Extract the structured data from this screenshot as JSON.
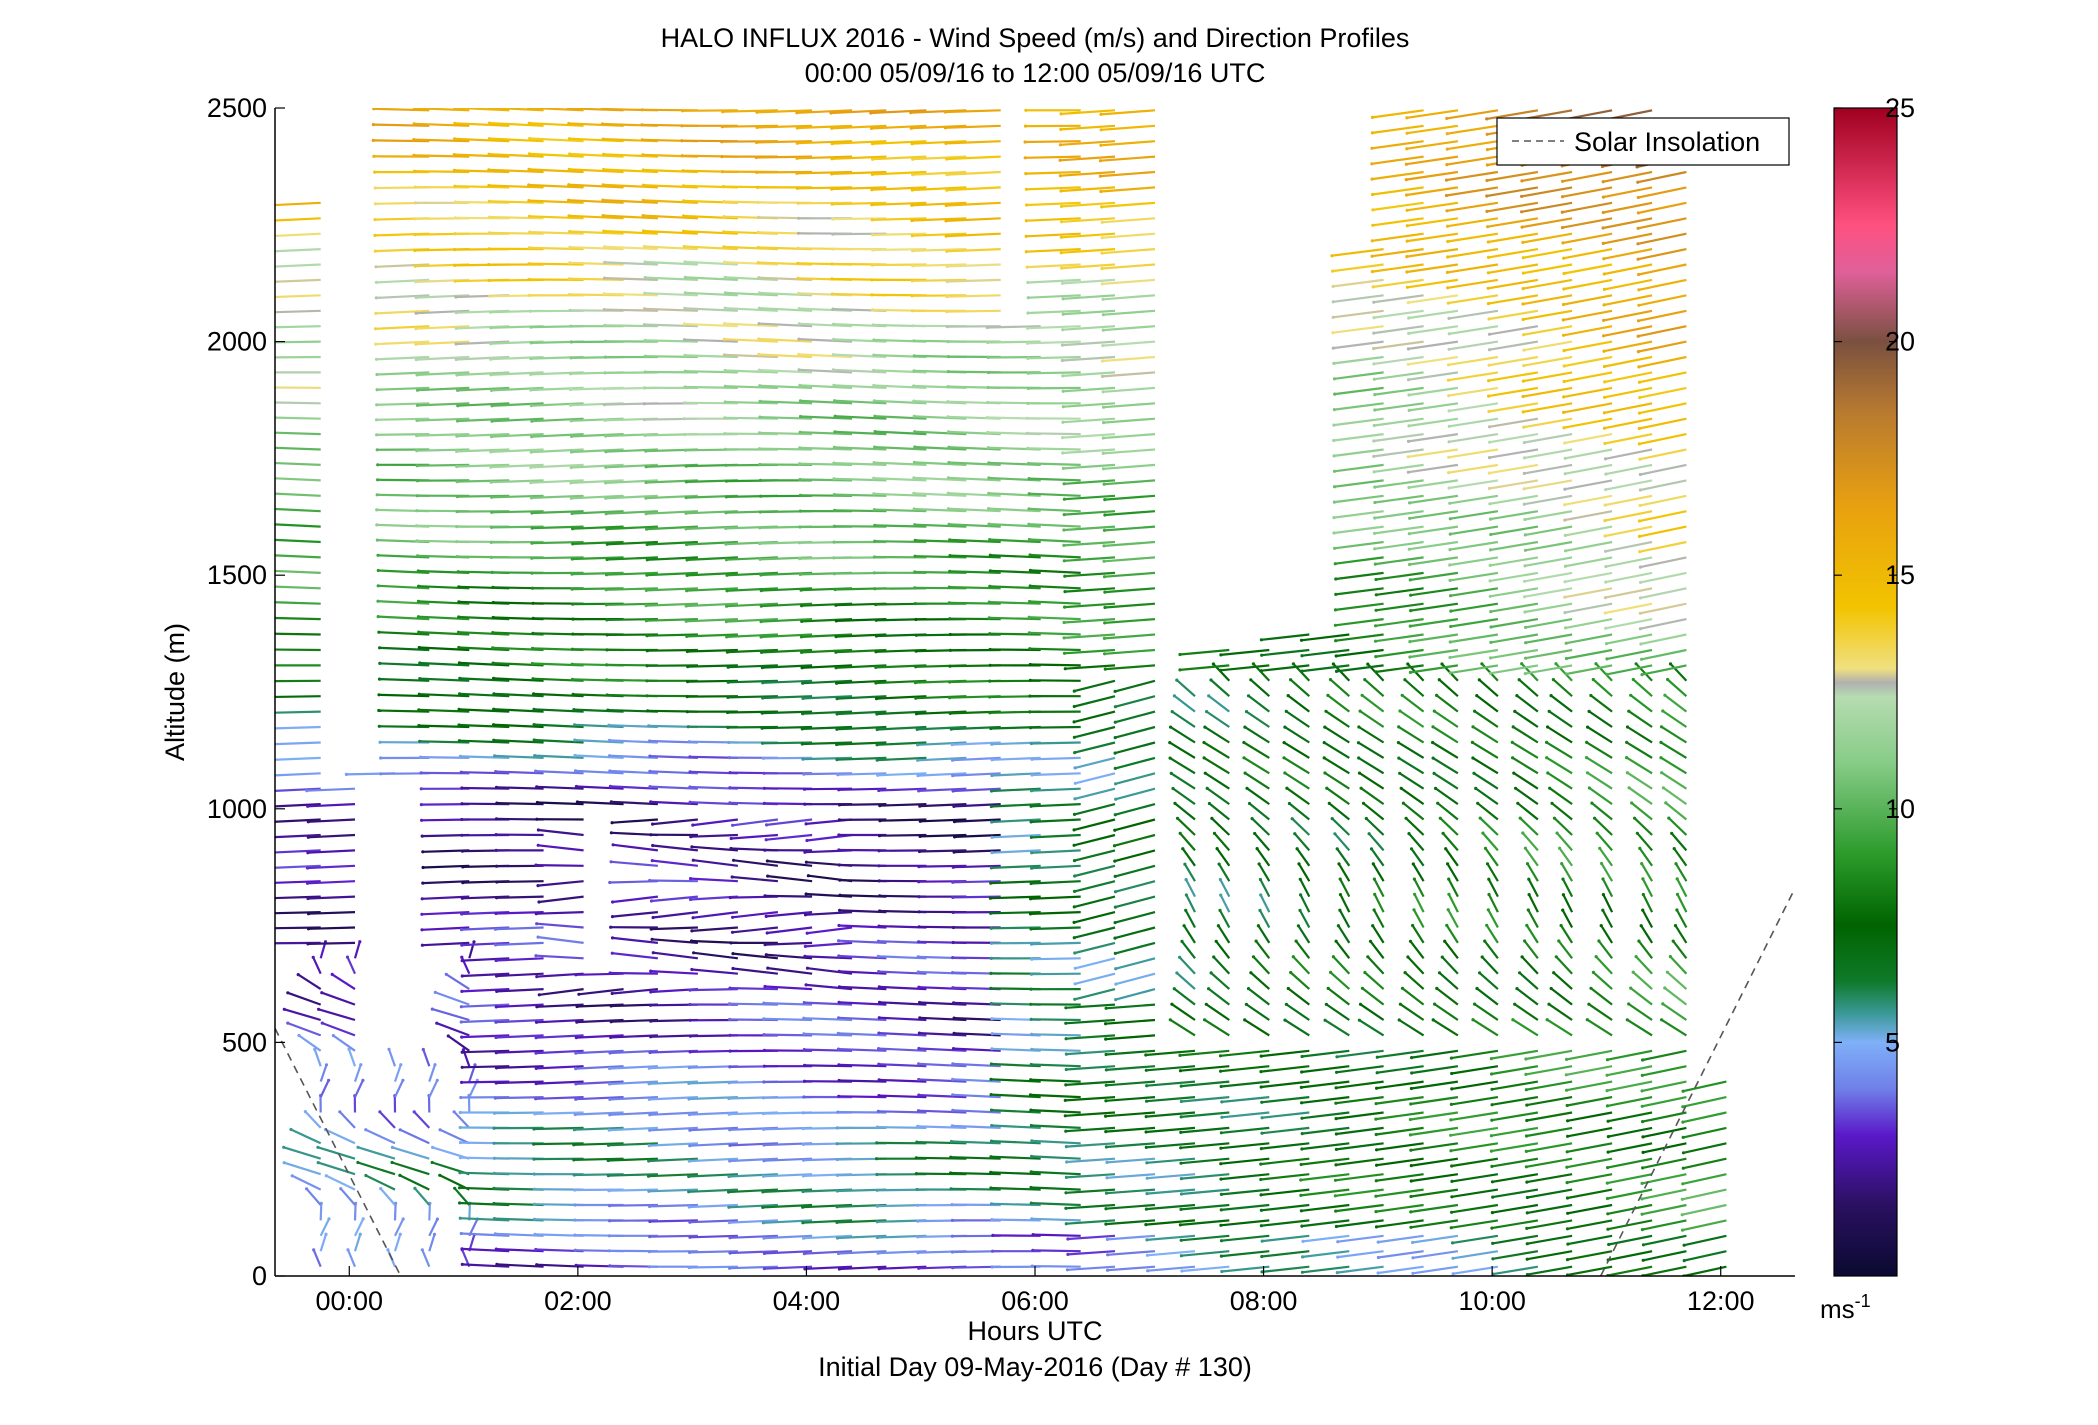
{
  "title_line1": "HALO INFLUX 2016 - Wind Speed (m/s) and Direction Profiles",
  "title_line2": "00:00 05/09/16 to 12:00 05/09/16  UTC",
  "xlabel": "Hours UTC",
  "xlabel2": "Initial Day 09-May-2016 (Day # 130)",
  "ylabel": "Altitude (m)",
  "legend_label": "Solar Insolation",
  "colorbar_unit": "ms",
  "colorbar_unit_exp": "-1",
  "chart_data": {
    "type": "wind barb profile (quiver)",
    "x_unit": "hours UTC",
    "y_unit": "m",
    "xlim": [
      -0.65,
      12.65
    ],
    "ylim": [
      0,
      2500
    ],
    "xticks": [
      0,
      2,
      4,
      6,
      8,
      10,
      12
    ],
    "xtick_labels": [
      "00:00",
      "02:00",
      "04:00",
      "06:00",
      "08:00",
      "10:00",
      "12:00"
    ],
    "yticks": [
      0,
      500,
      1000,
      1500,
      2000,
      2500
    ],
    "ytick_labels": [
      "0",
      "500",
      "1000",
      "1500",
      "2000",
      "2500"
    ],
    "colorbar": {
      "range": [
        0,
        25
      ],
      "ticks": [
        5,
        10,
        15,
        20,
        25
      ],
      "tick_labels": [
        "5",
        "10",
        "15",
        "20",
        "25"
      ],
      "colormap": [
        {
          "v": 0,
          "c": "#0a0a30"
        },
        {
          "v": 1.5,
          "c": "#2a1060"
        },
        {
          "v": 3,
          "c": "#5a18c8"
        },
        {
          "v": 4,
          "c": "#6f7fe8"
        },
        {
          "v": 5,
          "c": "#7fb0f8"
        },
        {
          "v": 5.6,
          "c": "#3c9a9a"
        },
        {
          "v": 6.3,
          "c": "#0f7a2a"
        },
        {
          "v": 7.5,
          "c": "#006400"
        },
        {
          "v": 9,
          "c": "#2a9a2a"
        },
        {
          "v": 11,
          "c": "#88cc88"
        },
        {
          "v": 12.4,
          "c": "#b6dcb0"
        },
        {
          "v": 12.7,
          "c": "#b0b0b0"
        },
        {
          "v": 13,
          "c": "#f0e080"
        },
        {
          "v": 14.3,
          "c": "#f2c400"
        },
        {
          "v": 16.5,
          "c": "#e8a010"
        },
        {
          "v": 18.5,
          "c": "#b87a30"
        },
        {
          "v": 20,
          "c": "#7a5040"
        },
        {
          "v": 21.5,
          "c": "#e0609a"
        },
        {
          "v": 22.5,
          "c": "#ff5080"
        },
        {
          "v": 25,
          "c": "#a00020"
        }
      ]
    },
    "series": [
      {
        "name": "Solar Insolation",
        "style": "dashed",
        "color": "#555555",
        "x": [
          -0.65,
          0.45,
          10.95,
          12.65
        ],
        "y": [
          530,
          0,
          0,
          830
        ]
      }
    ],
    "profiles": {
      "times": [
        -0.25,
        0.05,
        0.4,
        0.7,
        1.05,
        1.4,
        1.7,
        2.05,
        2.4,
        2.7,
        3.05,
        3.4,
        3.75,
        4.05,
        4.4,
        4.7,
        5.05,
        5.4,
        5.7,
        6.05,
        6.4,
        6.7,
        7.05,
        7.4,
        7.7,
        8.05,
        8.4,
        8.75,
        9.05,
        9.4,
        9.7,
        10.05,
        10.4,
        10.7,
        11.05,
        11.4,
        11.7,
        12.05
      ],
      "altitude_step_m": 33,
      "max_altitude_m": [
        2300,
        1050,
        1080,
        2500,
        2500,
        2500,
        2500,
        2500,
        2500,
        2500,
        2500,
        2500,
        2500,
        2500,
        2500,
        2500,
        2500,
        2500,
        2500,
        2050,
        2500,
        2500,
        2500,
        1250,
        1350,
        1350,
        2100,
        2100,
        2200,
        2500,
        2500,
        2500,
        2500,
        2500,
        2500,
        2500,
        2420,
        420
      ],
      "gaps_m": [
        [
          0,
          0
        ],
        [
          480,
          720
        ],
        [
          2280,
          2500
        ]
      ],
      "speed_by_altitude_m_s": [
        {
          "alt": 0,
          "speed": 3
        },
        {
          "alt": 200,
          "speed": 6
        },
        {
          "alt": 500,
          "speed": 3
        },
        {
          "alt": 1000,
          "speed": 2
        },
        {
          "alt": 1200,
          "speed": 7
        },
        {
          "alt": 1600,
          "speed": 10
        },
        {
          "alt": 2000,
          "speed": 12
        },
        {
          "alt": 2500,
          "speed": 16
        }
      ]
    }
  }
}
